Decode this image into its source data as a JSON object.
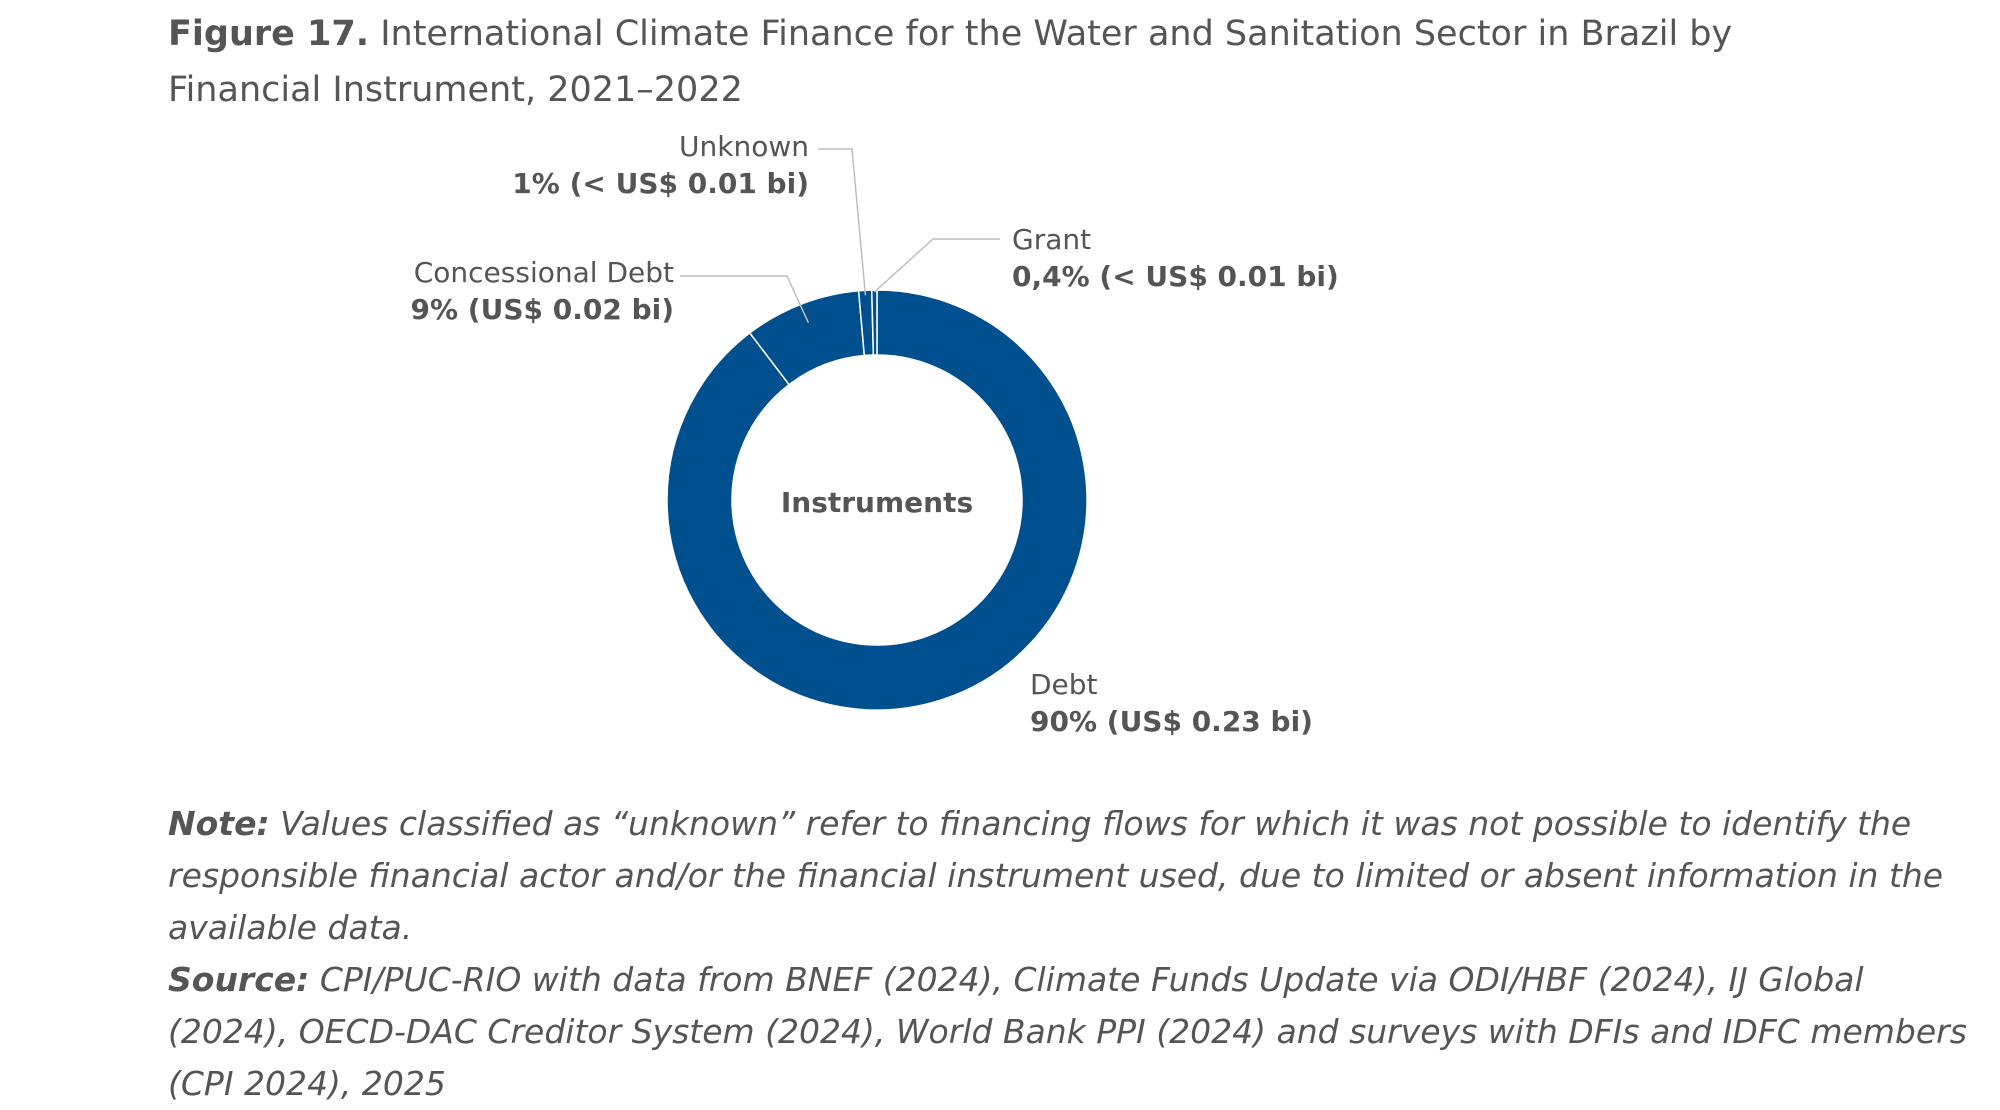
{
  "figure": {
    "number": "Figure 17.",
    "title": "International Climate Finance for the Water and Sanitation Sector in Brazil by Financial Instrument, 2021–2022"
  },
  "chart_data": {
    "type": "pie",
    "style": "donut",
    "center_label": "Instruments",
    "colors": {
      "slice": "#00508F",
      "separator": "#ffffff",
      "leader": "#bfbfbf"
    },
    "slices": [
      {
        "name": "Debt",
        "percent": 90,
        "value_text": "90% (US$ 0.23 bi)"
      },
      {
        "name": "Concessional Debt",
        "percent": 9,
        "value_text": "9% (US$ 0.02 bi)"
      },
      {
        "name": "Unknown",
        "percent": 1,
        "value_text": "1% (< US$ 0.01 bi)"
      },
      {
        "name": "Grant",
        "percent": 0.4,
        "value_text": "0,4% (< US$ 0.01 bi)"
      }
    ]
  },
  "note": {
    "label": "Note:",
    "text": "Values classified as “unknown” refer to financing flows for which it was not possible to identify the responsible financial actor and/or the financial instrument used, due to limited or absent information in the available data."
  },
  "source": {
    "label": "Source:",
    "text": "CPI/PUC-RIO with data from BNEF (2024), Climate Funds Update via ODI/HBF (2024), IJ Global (2024), OECD-DAC Creditor System (2024), World Bank PPI (2024) and surveys with DFIs and IDFC members (CPI 2024), 2025"
  }
}
